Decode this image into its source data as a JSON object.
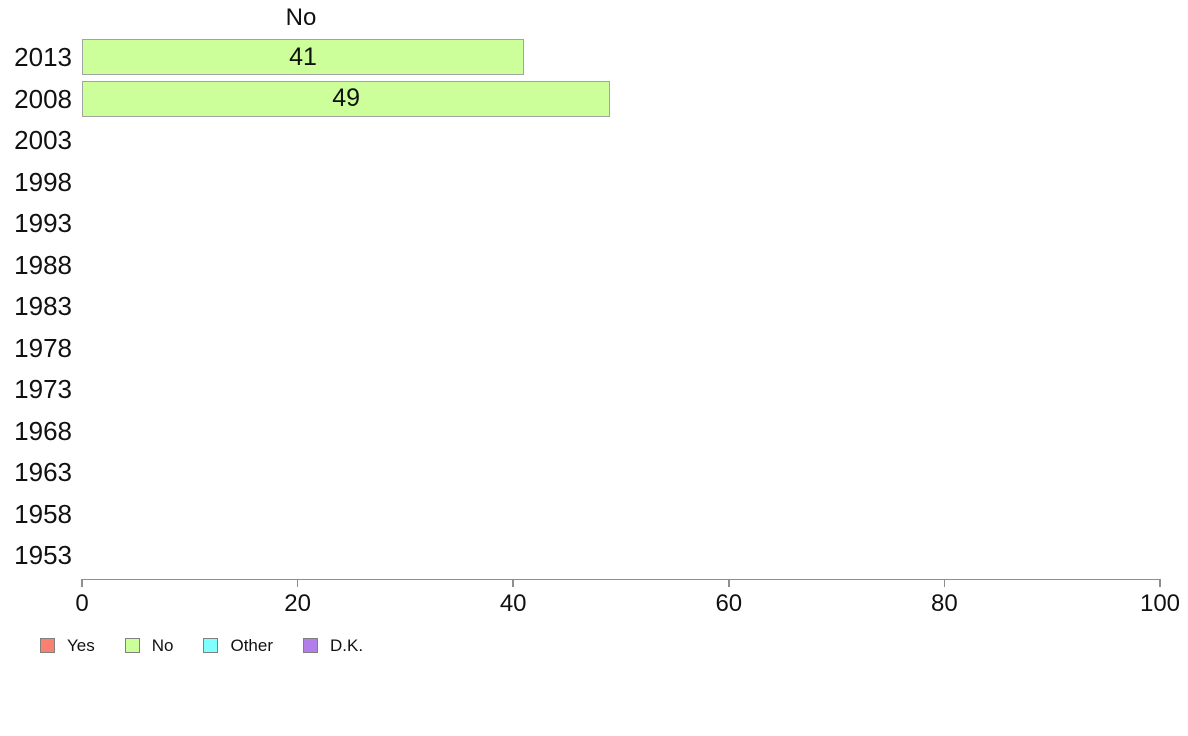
{
  "chart_data": {
    "type": "bar",
    "orientation": "horizontal",
    "title": "No",
    "categories": [
      "2013",
      "2008",
      "2003",
      "1998",
      "1993",
      "1988",
      "1983",
      "1978",
      "1973",
      "1968",
      "1963",
      "1958",
      "1953"
    ],
    "values": [
      41,
      49,
      null,
      null,
      null,
      null,
      null,
      null,
      null,
      null,
      null,
      null,
      null
    ],
    "bar_labels": [
      "41",
      "49",
      "",
      "",
      "",
      "",
      "",
      "",
      "",
      "",
      "",
      "",
      ""
    ],
    "xlim": [
      0,
      100
    ],
    "x_ticks": [
      "0",
      "20",
      "40",
      "60",
      "80",
      "100"
    ],
    "x_tick_values": [
      0,
      20,
      40,
      60,
      80,
      100
    ],
    "grid": false,
    "bar_fill": "#ccff99",
    "bar_border": "#a3a3a3",
    "axis_color": "#8e8e8e",
    "text_color": "#111111",
    "legend_position": "bottom-left",
    "legend": [
      {
        "label": "Yes",
        "color": "#fa8072"
      },
      {
        "label": "No",
        "color": "#ccff99"
      },
      {
        "label": "Other",
        "color": "#80ffff"
      },
      {
        "label": "D.K.",
        "color": "#b27fe8"
      }
    ]
  }
}
